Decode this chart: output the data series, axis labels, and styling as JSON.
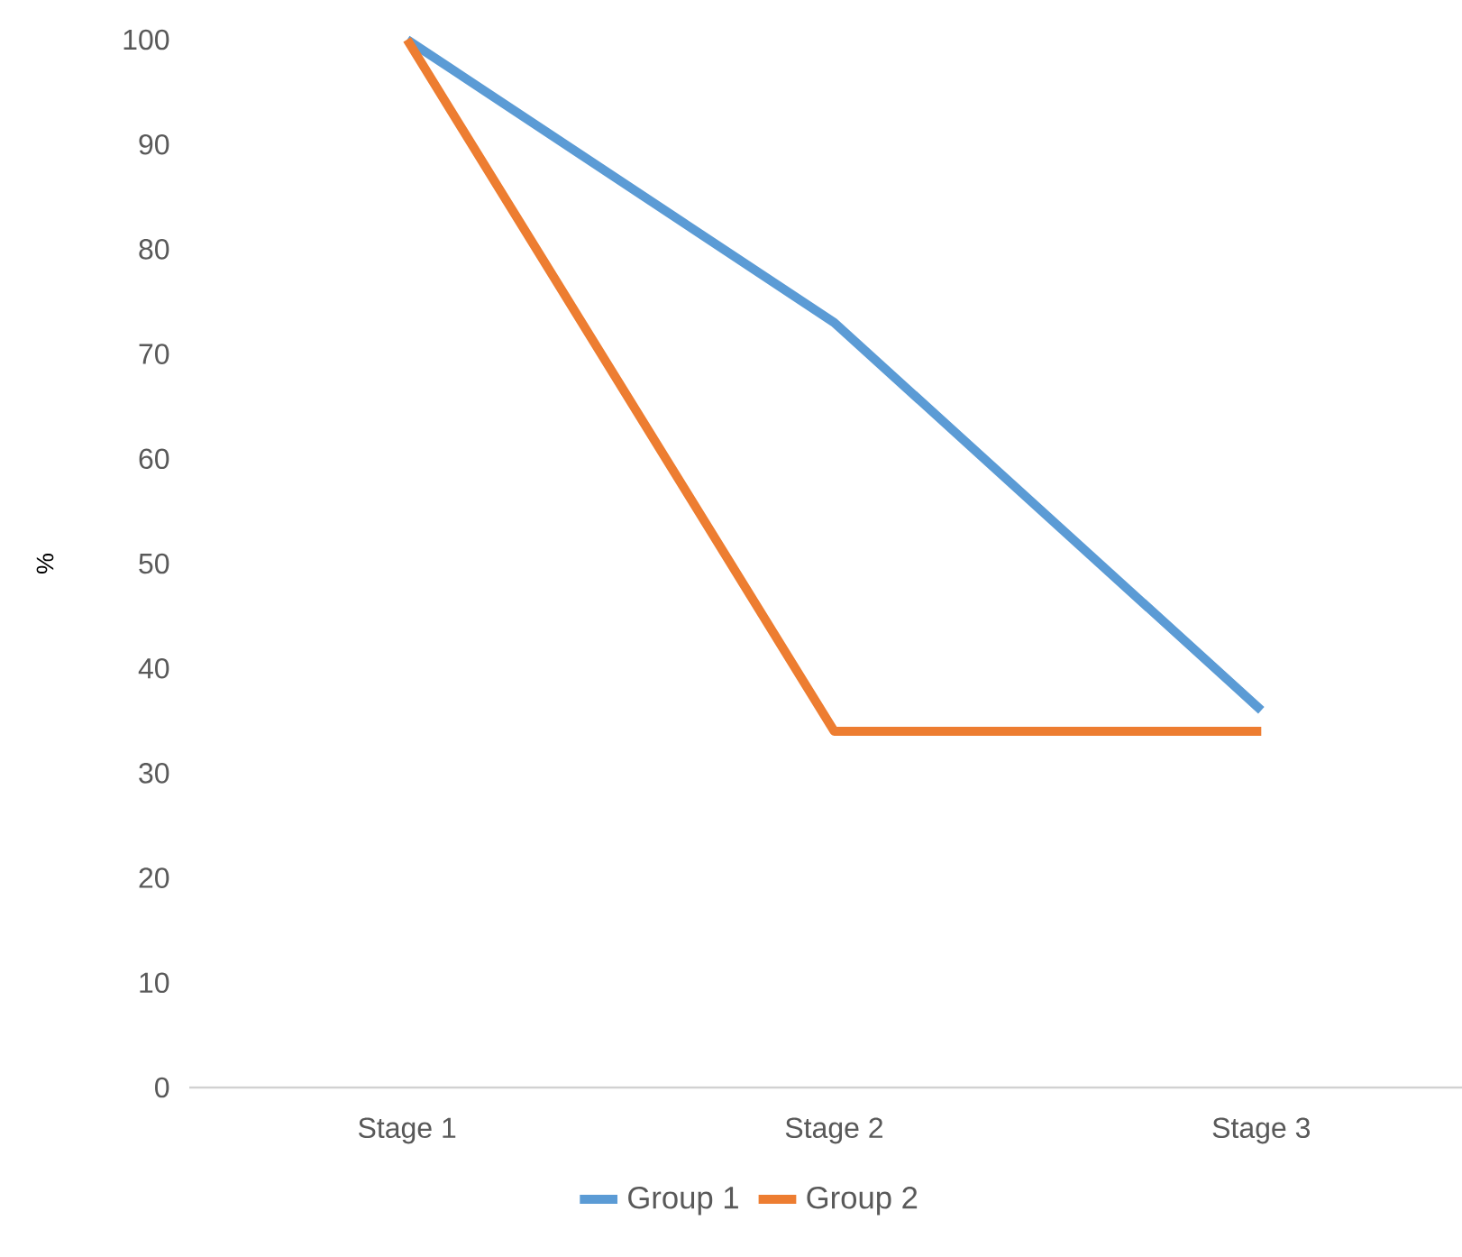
{
  "chart_data": {
    "type": "line",
    "ylabel": "%",
    "categories": [
      "Stage 1",
      "Stage 2",
      "Stage 3"
    ],
    "series": [
      {
        "name": "Group 1",
        "color": "#5b9bd5",
        "values": [
          100,
          73,
          36
        ]
      },
      {
        "name": "Group 2",
        "color": "#ed7d31",
        "values": [
          100,
          34,
          34
        ]
      }
    ],
    "ylim": [
      0,
      100
    ],
    "yticks": [
      0,
      10,
      20,
      30,
      40,
      50,
      60,
      70,
      80,
      90,
      100
    ],
    "legend": "bottom",
    "marker": "none",
    "line_style": "solid"
  }
}
